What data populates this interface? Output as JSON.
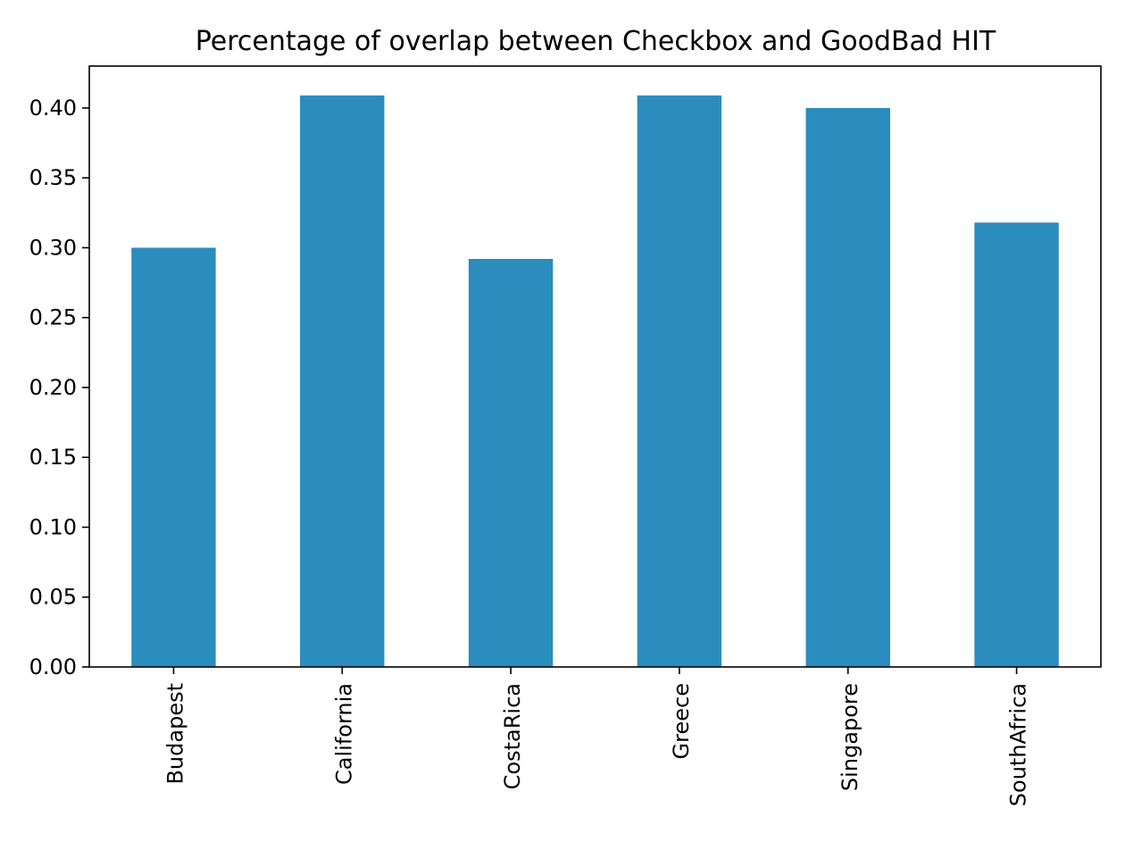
{
  "chart_data": {
    "type": "bar",
    "title": "Percentage of overlap between Checkbox and GoodBad HIT",
    "xlabel": "",
    "ylabel": "",
    "categories": [
      "Budapest",
      "California",
      "CostaRica",
      "Greece",
      "Singapore",
      "SouthAfrica"
    ],
    "values": [
      0.3,
      0.409,
      0.292,
      0.409,
      0.4,
      0.318
    ],
    "ylim": [
      0,
      0.43
    ],
    "yticks": [
      "0.00",
      "0.05",
      "0.10",
      "0.15",
      "0.20",
      "0.25",
      "0.30",
      "0.35",
      "0.40"
    ],
    "grid": false,
    "legend": "none",
    "bar_color": "#2b8cbe"
  }
}
